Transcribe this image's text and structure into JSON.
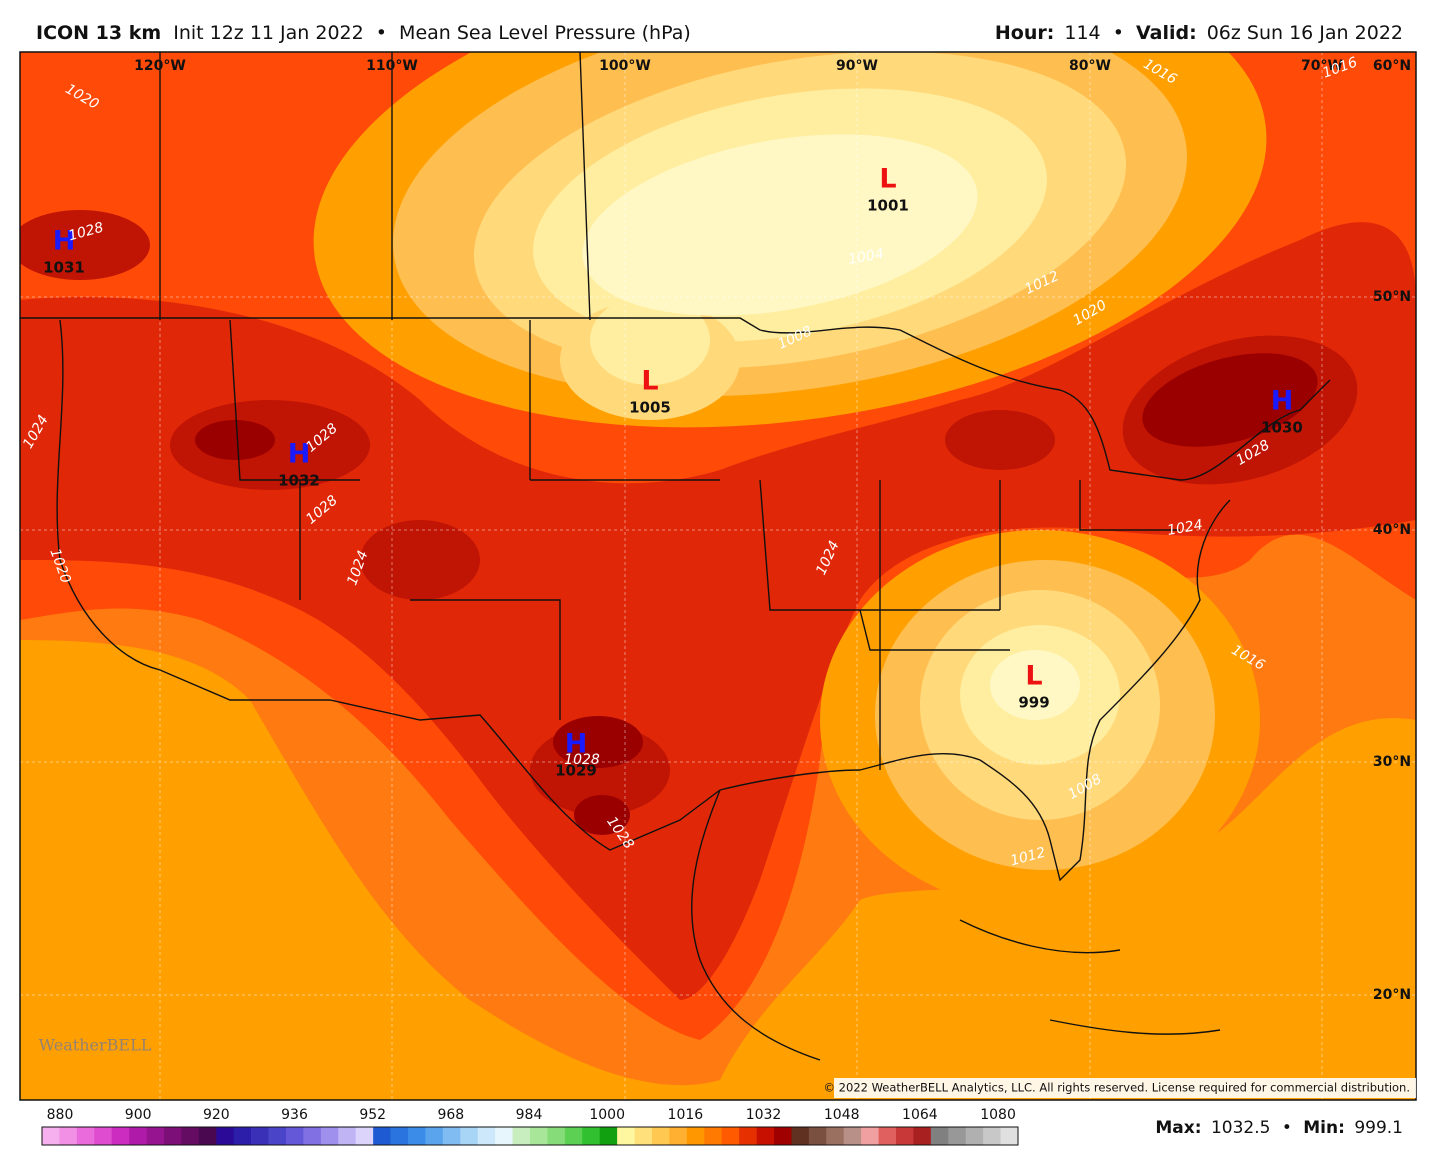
{
  "header": {
    "model": "ICON 13 km",
    "init": "Init 12z 11 Jan 2022",
    "separator": "•",
    "field": "Mean Sea Level Pressure (hPa)",
    "hour_label": "Hour:",
    "hour": 114,
    "valid_label": "Valid:",
    "valid": "06z Sun 16 Jan 2022"
  },
  "map": {
    "longitudes": [
      "120°W",
      "110°W",
      "100°W",
      "90°W",
      "80°W",
      "70°W"
    ],
    "latitudes": [
      "60°N",
      "50°N",
      "40°N",
      "30°N",
      "20°N"
    ],
    "centers": [
      {
        "symbol": "H",
        "value": 1031
      },
      {
        "symbol": "H",
        "value": 1032
      },
      {
        "symbol": "L",
        "value": 1005
      },
      {
        "symbol": "L",
        "value": 1001
      },
      {
        "symbol": "H",
        "value": 1030
      },
      {
        "symbol": "H",
        "value": 1029
      },
      {
        "symbol": "L",
        "value": 999
      }
    ],
    "contour_labels": [
      1020,
      1028,
      1024,
      1020,
      1028,
      1028,
      1024,
      1004,
      1012,
      1020,
      1008,
      1024,
      1028,
      1024,
      1016,
      1008,
      1012,
      1028,
      1028,
      1016,
      1016
    ],
    "watermark": "WeatherBELL",
    "copyright": "© 2022 WeatherBELL Analytics, LLC. All rights reserved. License required for commercial distribution."
  },
  "colorbar": {
    "ticks": [
      880,
      900,
      920,
      936,
      952,
      968,
      984,
      1000,
      1016,
      1032,
      1048,
      1064,
      1080
    ],
    "colors": [
      "#f7b0ef",
      "#f290e6",
      "#ea6cdc",
      "#df4ccf",
      "#cc2cbf",
      "#b01aa8",
      "#96148f",
      "#7c0f78",
      "#640b62",
      "#4a0850",
      "#2a0a96",
      "#2c1ea8",
      "#3a30b8",
      "#4a44c8",
      "#6458d8",
      "#8070e4",
      "#a090ee",
      "#c0b4f4",
      "#dcd4fa",
      "#1e5ad2",
      "#2a74e0",
      "#3a8ce8",
      "#5aa4ee",
      "#80bcf2",
      "#a8d4f6",
      "#cce8fa",
      "#e6f6fc",
      "#c8eec0",
      "#a8e69a",
      "#86dc78",
      "#5cd052",
      "#30c030",
      "#10a010",
      "#fff7a0",
      "#ffe07a",
      "#ffc850",
      "#ffb030",
      "#ff9800",
      "#ff7a00",
      "#ff5a00",
      "#e63000",
      "#c81000",
      "#a00000",
      "#603020",
      "#7a5040",
      "#9a7060",
      "#b89088",
      "#f0a0a0",
      "#e06060",
      "#c83838",
      "#a82020",
      "#808080",
      "#989898",
      "#b0b0b0",
      "#c8c8c8",
      "#e0e0e0"
    ]
  },
  "stats": {
    "max_label": "Max:",
    "max": 1032.5,
    "separator": "•",
    "min_label": "Min:",
    "min": 999.1
  }
}
